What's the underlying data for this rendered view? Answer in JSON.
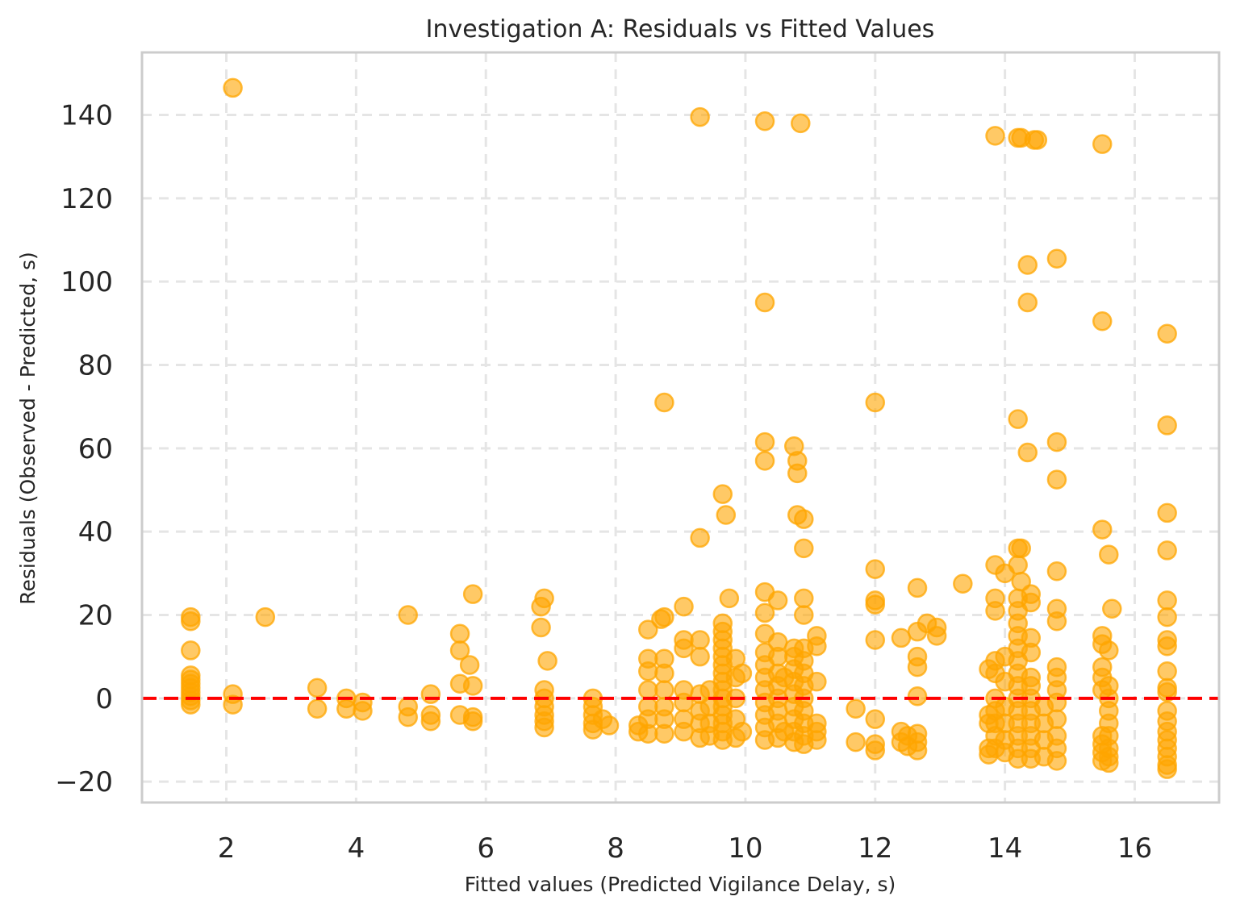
{
  "chart_data": {
    "type": "scatter",
    "title": "Investigation A: Residuals vs Fitted Values",
    "xlabel": "Fitted values (Predicted Vigilance Delay, s)",
    "ylabel": "Residuals (Observed - Predicted, s)",
    "xlim": [
      0.7,
      17.3
    ],
    "ylim": [
      -25,
      155
    ],
    "xticks": [
      2,
      4,
      6,
      8,
      10,
      12,
      14,
      16
    ],
    "yticks": [
      -20,
      0,
      20,
      40,
      60,
      80,
      100,
      120,
      140
    ],
    "xtick_labels": [
      "2",
      "4",
      "6",
      "8",
      "10",
      "12",
      "14",
      "16"
    ],
    "ytick_labels": [
      "−20",
      "0",
      "20",
      "40",
      "60",
      "80",
      "100",
      "120",
      "140"
    ],
    "grid": true,
    "point_color": "#FFA500",
    "point_alpha": 0.6,
    "reference_line": {
      "y": 0,
      "color": "#FF0000",
      "style": "dashed"
    },
    "points": [
      [
        1.45,
        19.5
      ],
      [
        1.45,
        18.5
      ],
      [
        1.45,
        11.5
      ],
      [
        1.45,
        5.5
      ],
      [
        1.45,
        4.5
      ],
      [
        1.45,
        3.5
      ],
      [
        1.45,
        2.5
      ],
      [
        1.45,
        1.5
      ],
      [
        1.45,
        0.5
      ],
      [
        1.45,
        -0.5
      ],
      [
        1.45,
        -1.5
      ],
      [
        2.1,
        146.5
      ],
      [
        2.1,
        1
      ],
      [
        2.1,
        -1.5
      ],
      [
        2.6,
        19.5
      ],
      [
        3.4,
        2.5
      ],
      [
        3.4,
        -2.5
      ],
      [
        3.85,
        0
      ],
      [
        3.85,
        -2.5
      ],
      [
        4.1,
        -1
      ],
      [
        4.1,
        -3
      ],
      [
        4.8,
        20
      ],
      [
        4.8,
        -2
      ],
      [
        4.8,
        -4.5
      ],
      [
        5.15,
        1
      ],
      [
        5.15,
        -4
      ],
      [
        5.15,
        -5.5
      ],
      [
        5.6,
        15.5
      ],
      [
        5.6,
        11.5
      ],
      [
        5.6,
        3.5
      ],
      [
        5.6,
        -4
      ],
      [
        5.75,
        8
      ],
      [
        5.8,
        25
      ],
      [
        5.8,
        3
      ],
      [
        5.8,
        -4.5
      ],
      [
        5.8,
        -5.5
      ],
      [
        6.85,
        22
      ],
      [
        6.9,
        24
      ],
      [
        6.85,
        17
      ],
      [
        6.95,
        9
      ],
      [
        6.9,
        2
      ],
      [
        6.9,
        0
      ],
      [
        6.9,
        -2
      ],
      [
        6.9,
        -4
      ],
      [
        6.9,
        -5.5
      ],
      [
        6.9,
        -7
      ],
      [
        7.65,
        0
      ],
      [
        7.65,
        -2
      ],
      [
        7.65,
        -4
      ],
      [
        7.65,
        -6
      ],
      [
        7.65,
        -7.5
      ],
      [
        7.8,
        -5
      ],
      [
        7.9,
        -6.5
      ],
      [
        8.35,
        -6.5
      ],
      [
        8.35,
        -8
      ],
      [
        8.5,
        16.5
      ],
      [
        8.5,
        9.5
      ],
      [
        8.5,
        6.5
      ],
      [
        8.5,
        2
      ],
      [
        8.5,
        -2
      ],
      [
        8.5,
        -5
      ],
      [
        8.5,
        -8.5
      ],
      [
        8.75,
        71
      ],
      [
        8.75,
        19.5
      ],
      [
        8.7,
        19
      ],
      [
        8.75,
        9.5
      ],
      [
        8.75,
        6
      ],
      [
        8.75,
        2
      ],
      [
        8.75,
        -2
      ],
      [
        8.75,
        -5
      ],
      [
        8.75,
        -8.5
      ],
      [
        9.05,
        22
      ],
      [
        9.05,
        14
      ],
      [
        9.05,
        12
      ],
      [
        9.05,
        2
      ],
      [
        9.05,
        -1
      ],
      [
        9.05,
        -5
      ],
      [
        9.05,
        -8
      ],
      [
        9.3,
        139.5
      ],
      [
        9.3,
        38.5
      ],
      [
        9.3,
        14
      ],
      [
        9.3,
        10
      ],
      [
        9.3,
        1
      ],
      [
        9.3,
        -3
      ],
      [
        9.3,
        -6
      ],
      [
        9.3,
        -9.5
      ],
      [
        9.45,
        2
      ],
      [
        9.45,
        -2
      ],
      [
        9.45,
        -6
      ],
      [
        9.45,
        -9
      ],
      [
        9.65,
        49
      ],
      [
        9.7,
        44
      ],
      [
        9.75,
        24
      ],
      [
        9.65,
        18
      ],
      [
        9.65,
        16
      ],
      [
        9.65,
        14
      ],
      [
        9.65,
        12
      ],
      [
        9.65,
        10
      ],
      [
        9.65,
        8
      ],
      [
        9.65,
        6
      ],
      [
        9.65,
        4
      ],
      [
        9.65,
        2
      ],
      [
        9.65,
        0
      ],
      [
        9.65,
        -2
      ],
      [
        9.65,
        -4
      ],
      [
        9.65,
        -6
      ],
      [
        9.65,
        -8
      ],
      [
        9.65,
        -10
      ],
      [
        9.85,
        9.5
      ],
      [
        9.85,
        5
      ],
      [
        9.85,
        0
      ],
      [
        9.85,
        -5
      ],
      [
        9.85,
        -9.5
      ],
      [
        9.95,
        6
      ],
      [
        9.95,
        -8
      ],
      [
        10.3,
        138.5
      ],
      [
        10.3,
        95
      ],
      [
        10.3,
        61.5
      ],
      [
        10.3,
        57
      ],
      [
        10.3,
        25.5
      ],
      [
        10.3,
        20.5
      ],
      [
        10.3,
        15.5
      ],
      [
        10.3,
        11
      ],
      [
        10.3,
        8
      ],
      [
        10.3,
        5
      ],
      [
        10.3,
        2
      ],
      [
        10.3,
        -1
      ],
      [
        10.3,
        -4
      ],
      [
        10.3,
        -7
      ],
      [
        10.3,
        -10
      ],
      [
        10.5,
        23.5
      ],
      [
        10.5,
        13.5
      ],
      [
        10.5,
        10
      ],
      [
        10.5,
        6
      ],
      [
        10.5,
        3
      ],
      [
        10.5,
        0
      ],
      [
        10.5,
        -3
      ],
      [
        10.5,
        -6
      ],
      [
        10.5,
        -9.5
      ],
      [
        10.6,
        5
      ],
      [
        10.6,
        -8
      ],
      [
        10.75,
        60.5
      ],
      [
        10.8,
        57
      ],
      [
        10.8,
        54
      ],
      [
        10.8,
        44
      ],
      [
        10.75,
        12
      ],
      [
        10.75,
        10
      ],
      [
        10.75,
        7
      ],
      [
        10.75,
        4
      ],
      [
        10.75,
        1
      ],
      [
        10.75,
        -2
      ],
      [
        10.75,
        -5
      ],
      [
        10.75,
        -8
      ],
      [
        10.75,
        -10.5
      ],
      [
        10.85,
        138
      ],
      [
        10.9,
        43
      ],
      [
        10.9,
        36
      ],
      [
        10.9,
        24
      ],
      [
        10.9,
        20
      ],
      [
        10.9,
        12
      ],
      [
        10.9,
        9
      ],
      [
        10.9,
        6
      ],
      [
        10.9,
        3
      ],
      [
        10.9,
        0
      ],
      [
        10.9,
        -3
      ],
      [
        10.9,
        -6
      ],
      [
        10.9,
        -9
      ],
      [
        10.9,
        -11
      ],
      [
        11.1,
        15
      ],
      [
        11.1,
        12.5
      ],
      [
        11.1,
        4
      ],
      [
        11.1,
        -6
      ],
      [
        11.1,
        -8
      ],
      [
        11.1,
        -10
      ],
      [
        11.7,
        -2.5
      ],
      [
        11.7,
        -10.5
      ],
      [
        12.0,
        71
      ],
      [
        12.0,
        31
      ],
      [
        12.0,
        23.5
      ],
      [
        12.0,
        22.5
      ],
      [
        12.0,
        14
      ],
      [
        12.0,
        -5
      ],
      [
        12.0,
        -11
      ],
      [
        12.0,
        -12.5
      ],
      [
        12.4,
        14.5
      ],
      [
        12.4,
        -8
      ],
      [
        12.4,
        -10.5
      ],
      [
        12.5,
        -9
      ],
      [
        12.5,
        -11.5
      ],
      [
        12.65,
        26.5
      ],
      [
        12.65,
        16
      ],
      [
        12.65,
        10
      ],
      [
        12.65,
        7.5
      ],
      [
        12.65,
        0.5
      ],
      [
        12.65,
        -8.5
      ],
      [
        12.65,
        -10.5
      ],
      [
        12.65,
        -12.5
      ],
      [
        12.8,
        18
      ],
      [
        12.95,
        17
      ],
      [
        12.95,
        15
      ],
      [
        13.35,
        27.5
      ],
      [
        13.75,
        7
      ],
      [
        13.75,
        -4
      ],
      [
        13.75,
        -6
      ],
      [
        13.75,
        -12
      ],
      [
        13.75,
        -13.5
      ],
      [
        13.85,
        135
      ],
      [
        13.85,
        32
      ],
      [
        13.85,
        24
      ],
      [
        13.85,
        21
      ],
      [
        13.85,
        9
      ],
      [
        13.85,
        6
      ],
      [
        13.85,
        0
      ],
      [
        13.85,
        -3
      ],
      [
        13.85,
        -6
      ],
      [
        13.85,
        -9
      ],
      [
        13.85,
        -12
      ],
      [
        14.0,
        30
      ],
      [
        14.0,
        10
      ],
      [
        14.0,
        4
      ],
      [
        14.0,
        -2
      ],
      [
        14.0,
        -6
      ],
      [
        14.0,
        -10
      ],
      [
        14.0,
        -13
      ],
      [
        14.2,
        134.5
      ],
      [
        14.25,
        134.5
      ],
      [
        14.2,
        67
      ],
      [
        14.2,
        36
      ],
      [
        14.25,
        36
      ],
      [
        14.2,
        32
      ],
      [
        14.25,
        28
      ],
      [
        14.2,
        24
      ],
      [
        14.2,
        21
      ],
      [
        14.2,
        18
      ],
      [
        14.2,
        15
      ],
      [
        14.2,
        12
      ],
      [
        14.2,
        9
      ],
      [
        14.2,
        6
      ],
      [
        14.2,
        3
      ],
      [
        14.2,
        0
      ],
      [
        14.2,
        -3
      ],
      [
        14.2,
        -6
      ],
      [
        14.2,
        -9
      ],
      [
        14.2,
        -12
      ],
      [
        14.2,
        -14.5
      ],
      [
        14.35,
        104
      ],
      [
        14.35,
        95
      ],
      [
        14.35,
        59
      ],
      [
        14.4,
        25
      ],
      [
        14.4,
        23
      ],
      [
        14.4,
        14.5
      ],
      [
        14.4,
        11
      ],
      [
        14.4,
        5
      ],
      [
        14.4,
        3
      ],
      [
        14.4,
        0
      ],
      [
        14.4,
        -3
      ],
      [
        14.4,
        -6
      ],
      [
        14.4,
        -9
      ],
      [
        14.4,
        -12
      ],
      [
        14.4,
        -14.5
      ],
      [
        14.45,
        134
      ],
      [
        14.5,
        134
      ],
      [
        14.6,
        -2
      ],
      [
        14.6,
        -6
      ],
      [
        14.6,
        -10
      ],
      [
        14.6,
        -14
      ],
      [
        14.8,
        105.5
      ],
      [
        14.8,
        61.5
      ],
      [
        14.8,
        52.5
      ],
      [
        14.8,
        30.5
      ],
      [
        14.8,
        21.5
      ],
      [
        14.8,
        18.5
      ],
      [
        14.8,
        7.5
      ],
      [
        14.8,
        5
      ],
      [
        14.8,
        2
      ],
      [
        14.8,
        -1
      ],
      [
        14.8,
        -5
      ],
      [
        14.8,
        -9
      ],
      [
        14.8,
        -12
      ],
      [
        14.8,
        -15
      ],
      [
        15.5,
        133
      ],
      [
        15.5,
        90.5
      ],
      [
        15.5,
        40.5
      ],
      [
        15.5,
        15
      ],
      [
        15.5,
        13
      ],
      [
        15.5,
        7.5
      ],
      [
        15.5,
        5
      ],
      [
        15.5,
        2
      ],
      [
        15.5,
        -9
      ],
      [
        15.5,
        -11
      ],
      [
        15.5,
        -13
      ],
      [
        15.5,
        -15
      ],
      [
        15.6,
        34.5
      ],
      [
        15.65,
        21.5
      ],
      [
        15.6,
        11.5
      ],
      [
        15.6,
        3
      ],
      [
        15.6,
        0
      ],
      [
        15.6,
        -3
      ],
      [
        15.6,
        -6
      ],
      [
        15.6,
        -9
      ],
      [
        15.6,
        -12
      ],
      [
        15.6,
        -14
      ],
      [
        15.6,
        -15.5
      ],
      [
        16.5,
        87.5
      ],
      [
        16.5,
        65.5
      ],
      [
        16.5,
        44.5
      ],
      [
        16.5,
        35.5
      ],
      [
        16.5,
        23.5
      ],
      [
        16.5,
        19.5
      ],
      [
        16.5,
        14
      ],
      [
        16.5,
        12.5
      ],
      [
        16.5,
        6.5
      ],
      [
        16.5,
        2.5
      ],
      [
        16.5,
        1.5
      ],
      [
        16.5,
        -3
      ],
      [
        16.5,
        -5.5
      ],
      [
        16.5,
        -8
      ],
      [
        16.5,
        -10
      ],
      [
        16.5,
        -12
      ],
      [
        16.5,
        -14
      ],
      [
        16.5,
        -16
      ],
      [
        16.5,
        -17
      ]
    ]
  }
}
